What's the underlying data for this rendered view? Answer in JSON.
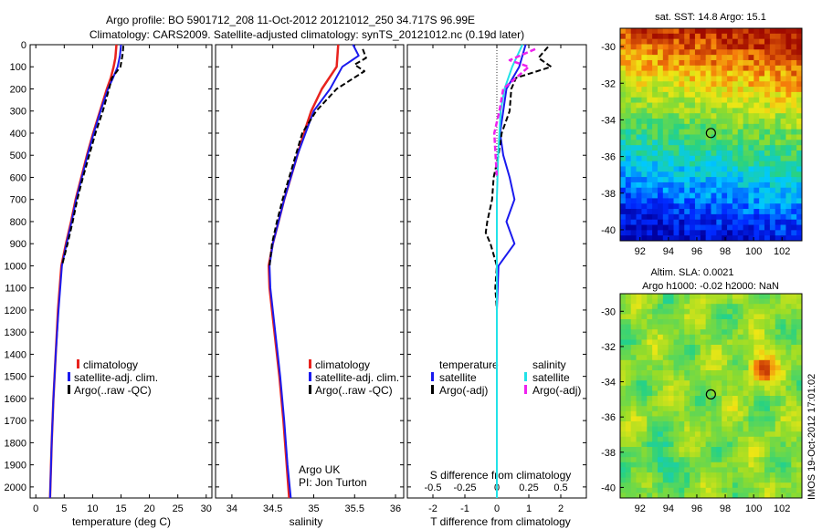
{
  "header": {
    "title_line1": "Argo profile: BO 5901712_208 11-Oct-2012 20121012_250 34.717S 96.99E",
    "title_line2": "Climatology: CARS2009. Satellite-adjusted climatology: synTS_20121012.nc (0.19d later)"
  },
  "side_label": "IMOS 19-Oct-2012 17:01:02",
  "colors": {
    "climatology": "#e8231e",
    "satellite": "#1a1aee",
    "argo": "#000000",
    "sal_satellite": "#22e2e8",
    "sal_argo": "#ee22ee"
  },
  "chart_data": [
    {
      "type": "line",
      "panel": "temperature",
      "xlabel": "temperature (deg C)",
      "xlim": [
        -1,
        31
      ],
      "xticks": [
        "0",
        "5",
        "10",
        "15",
        "20",
        "25",
        "30"
      ],
      "ylim": [
        2050,
        0
      ],
      "yticks": [
        "0",
        "100",
        "200",
        "300",
        "400",
        "500",
        "600",
        "700",
        "800",
        "900",
        "1000",
        "1100",
        "1200",
        "1300",
        "1400",
        "1500",
        "1600",
        "1700",
        "1800",
        "1900",
        "2000"
      ],
      "legend": [
        "climatology",
        "satellite-adj. clim.",
        "Argo(..raw -QC)"
      ],
      "series": [
        {
          "name": "climatology",
          "depth": [
            0,
            60,
            100,
            150,
            200,
            300,
            400,
            500,
            600,
            700,
            800,
            900,
            1000,
            1200,
            1400,
            1600,
            1800,
            2050
          ],
          "values": [
            14.2,
            14.0,
            13.7,
            13.2,
            12.5,
            11.3,
            10.1,
            9.0,
            8.0,
            7.0,
            6.2,
            5.3,
            4.5,
            3.9,
            3.5,
            3.1,
            2.8,
            2.5
          ]
        },
        {
          "name": "satellite-adj. clim.",
          "depth": [
            0,
            50,
            100,
            150,
            200,
            300,
            400,
            500,
            600,
            700,
            800,
            900,
            1000,
            1200,
            1400,
            1600,
            1800,
            2050
          ],
          "values": [
            15.0,
            14.8,
            14.4,
            13.6,
            12.7,
            11.4,
            10.2,
            9.1,
            8.1,
            7.1,
            6.3,
            5.4,
            4.6,
            4.0,
            3.5,
            3.1,
            2.8,
            2.5
          ]
        },
        {
          "name": "Argo(..raw -QC)",
          "depth": [
            5,
            40,
            100,
            150,
            200,
            300,
            400,
            500,
            600,
            700,
            800,
            900,
            1000
          ],
          "values": [
            15.4,
            15.3,
            14.9,
            13.4,
            12.9,
            11.8,
            10.5,
            9.4,
            8.3,
            7.3,
            6.5,
            5.6,
            4.6
          ]
        }
      ]
    },
    {
      "type": "line",
      "panel": "salinity",
      "xlabel": "salinity",
      "xlim": [
        33.8,
        36.1
      ],
      "xticks": [
        "34",
        "34.5",
        "35",
        "35.5",
        "36"
      ],
      "ylim": [
        2050,
        0
      ],
      "legend": [
        "climatology",
        "satellite-adj. clim.",
        "Argo(..raw -QC)"
      ],
      "annotation": [
        "Argo UK",
        "PI: Jon Turton"
      ],
      "series": [
        {
          "name": "climatology",
          "depth": [
            0,
            100,
            200,
            300,
            400,
            500,
            600,
            700,
            800,
            900,
            1000,
            1100,
            1300,
            1500,
            1700,
            1900,
            2050
          ],
          "values": [
            35.3,
            35.28,
            35.1,
            34.97,
            34.88,
            34.8,
            34.72,
            34.64,
            34.57,
            34.5,
            34.45,
            34.46,
            34.52,
            34.58,
            34.63,
            34.67,
            34.7
          ]
        },
        {
          "name": "satellite-adj. clim.",
          "depth": [
            0,
            50,
            100,
            200,
            300,
            400,
            500,
            600,
            700,
            800,
            900,
            1000,
            1100,
            1300,
            1500,
            1700,
            1900,
            2050
          ],
          "values": [
            35.48,
            35.55,
            35.35,
            35.2,
            35.0,
            34.9,
            34.8,
            34.72,
            34.64,
            34.57,
            34.5,
            34.46,
            34.47,
            34.53,
            34.59,
            34.64,
            34.68,
            34.72
          ]
        },
        {
          "name": "Argo(..raw -QC)",
          "depth": [
            20,
            60,
            90,
            120,
            200,
            300,
            400,
            500,
            600,
            700,
            800,
            900,
            1000
          ],
          "values": [
            35.6,
            35.64,
            35.5,
            35.62,
            35.28,
            35.03,
            34.86,
            34.78,
            34.7,
            34.62,
            34.55,
            34.49,
            34.46
          ]
        }
      ]
    },
    {
      "type": "line",
      "panel": "differences",
      "xlabel_bottom": "T difference from climatology",
      "xlabel_top": "S difference from climatology",
      "xlim": [
        -2.8,
        2.8
      ],
      "xticks": [
        "-2",
        "-1",
        "0",
        "1",
        "2"
      ],
      "top_ticks": [
        "-0.5",
        "-0.25",
        "0",
        "0.25",
        "0.5"
      ],
      "ylim": [
        2050,
        0
      ],
      "legend_temperature_title": "temperature",
      "legend_temperature": [
        "satellite",
        "Argo(-adj)"
      ],
      "legend_salinity_title": "salinity",
      "legend_salinity": [
        "satellite",
        "Argo(-adj)"
      ],
      "series": [
        {
          "name": "temperature satellite",
          "depth": [
            0,
            50,
            100,
            200,
            300,
            400,
            500,
            600,
            700,
            800,
            900,
            1000,
            1200,
            1500,
            1800,
            2050
          ],
          "values": [
            0.9,
            0.8,
            0.7,
            0.3,
            0.2,
            0.1,
            0.2,
            0.4,
            0.55,
            0.3,
            0.55,
            0.05,
            0.0,
            0.0,
            0.0,
            0.0
          ]
        },
        {
          "name": "temperature Argo(-adj)",
          "depth": [
            10,
            60,
            100,
            150,
            200,
            300,
            400,
            500,
            600,
            700,
            800,
            850,
            900,
            1000,
            1100,
            1200,
            1300
          ],
          "values": [
            1.6,
            1.3,
            1.7,
            0.6,
            0.45,
            0.4,
            0.15,
            0.05,
            -0.1,
            -0.15,
            -0.3,
            -0.35,
            -0.2,
            0.0,
            -0.05,
            0.0,
            0.0
          ]
        },
        {
          "name": "salinity satellite",
          "depth": [
            0,
            100,
            200,
            300,
            400,
            500,
            700,
            900,
            1200,
            1500,
            2050
          ],
          "values": [
            0.2,
            0.12,
            0.06,
            0.03,
            0.02,
            0.01,
            0.0,
            0.0,
            0.0,
            0.0,
            0.0
          ]
        },
        {
          "name": "salinity Argo(-adj)",
          "depth": [
            20,
            70,
            100,
            200,
            300,
            400,
            500,
            600
          ],
          "values": [
            0.3,
            0.1,
            0.25,
            0.05,
            0.02,
            -0.02,
            -0.01,
            0.0
          ]
        }
      ]
    }
  ],
  "maps": [
    {
      "title": "sat. SST: 14.8 Argo: 15.1",
      "xticks": [
        "92",
        "94",
        "96",
        "98",
        "100",
        "102"
      ],
      "yticks": [
        "-30",
        "-32",
        "-34",
        "-36",
        "-38",
        "-40"
      ],
      "marker": {
        "lon": 96.99,
        "lat": -34.717
      }
    },
    {
      "title_line1": "Altim. SLA: 0.0021",
      "title_line2": "Argo h1000: -0.02 h2000: NaN",
      "xticks": [
        "92",
        "94",
        "96",
        "98",
        "100",
        "102"
      ],
      "yticks": [
        "-30",
        "-32",
        "-34",
        "-36",
        "-38",
        "-40"
      ],
      "marker": {
        "lon": 96.99,
        "lat": -34.717
      }
    }
  ]
}
